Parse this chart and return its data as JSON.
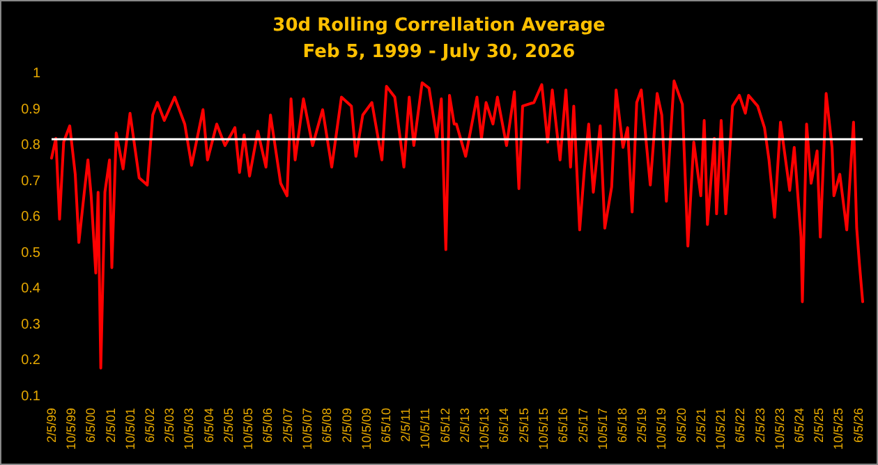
{
  "chart_data": {
    "type": "line",
    "title": "30d Rolling Correllation Average",
    "subtitle": "Feb 5, 1999 - July 30, 2026",
    "x": [
      "1999-02-05",
      "1999-03-30",
      "1999-05-15",
      "1999-07-05",
      "1999-09-18",
      "1999-11-25",
      "2000-01-09",
      "2000-03-16",
      "2000-04-30",
      "2000-06-09",
      "2000-08-05",
      "2000-09-03",
      "2000-10-06",
      "2000-11-26",
      "2001-01-22",
      "2001-02-20",
      "2001-04-15",
      "2001-07-09",
      "2001-10-03",
      "2002-01-24",
      "2002-05-04",
      "2002-07-11",
      "2002-09-07",
      "2002-12-01",
      "2003-04-08",
      "2003-08-11",
      "2003-11-04",
      "2004-03-24",
      "2004-05-19",
      "2004-09-10",
      "2004-12-21",
      "2005-04-23",
      "2005-06-19",
      "2005-08-15",
      "2005-10-21",
      "2006-01-31",
      "2006-05-12",
      "2006-07-07",
      "2006-11-10",
      "2007-01-28",
      "2007-03-18",
      "2007-05-08",
      "2007-08-19",
      "2007-12-10",
      "2008-04-12",
      "2008-08-03",
      "2008-12-01",
      "2009-04-03",
      "2009-05-29",
      "2009-08-22",
      "2009-12-13",
      "2010-04-16",
      "2010-06-11",
      "2010-09-22",
      "2011-01-13",
      "2011-03-20",
      "2011-05-16",
      "2011-08-26",
      "2011-11-20",
      "2012-02-24",
      "2012-04-20",
      "2012-06-15",
      "2012-07-30",
      "2012-09-26",
      "2012-10-24",
      "2013-02-15",
      "2013-07-05",
      "2013-08-30",
      "2013-10-26",
      "2014-01-19",
      "2014-03-15",
      "2014-07-06",
      "2014-10-11",
      "2014-12-06",
      "2015-01-21",
      "2015-06-10",
      "2015-09-15",
      "2015-11-27",
      "2016-01-23",
      "2016-04-28",
      "2016-07-10",
      "2016-09-05",
      "2016-10-15",
      "2016-12-27",
      "2017-02-22",
      "2017-04-18",
      "2017-06-14",
      "2017-09-07",
      "2017-11-03",
      "2018-01-27",
      "2018-03-23",
      "2018-06-16",
      "2018-08-12",
      "2018-10-07",
      "2018-12-03",
      "2019-01-28",
      "2019-05-20",
      "2019-08-13",
      "2019-10-09",
      "2019-12-05",
      "2020-03-09",
      "2020-06-20",
      "2020-08-27",
      "2020-11-08",
      "2021-02-03",
      "2021-03-17",
      "2021-04-26",
      "2021-07-20",
      "2021-08-17",
      "2021-10-13",
      "2021-12-09",
      "2022-03-03",
      "2022-05-26",
      "2022-08-08",
      "2022-09-17",
      "2023-01-08",
      "2023-04-02",
      "2023-05-28",
      "2023-08-05",
      "2023-10-17",
      "2024-02-08",
      "2024-04-04",
      "2024-06-27",
      "2024-07-14",
      "2024-09-04",
      "2024-10-30",
      "2025-01-12",
      "2025-02-21",
      "2025-05-04",
      "2025-07-16",
      "2025-08-08",
      "2025-10-20",
      "2026-01-14",
      "2026-04-08",
      "2026-05-17",
      "2026-06-20",
      "2026-07-30"
    ],
    "series": [
      {
        "color": "#ff0000",
        "values": [
          0.765,
          0.82,
          0.595,
          0.81,
          0.855,
          0.72,
          0.53,
          0.67,
          0.76,
          0.66,
          0.445,
          0.67,
          0.18,
          0.67,
          0.76,
          0.46,
          0.835,
          0.735,
          0.89,
          0.71,
          0.69,
          0.885,
          0.92,
          0.87,
          0.935,
          0.86,
          0.745,
          0.9,
          0.76,
          0.86,
          0.8,
          0.85,
          0.725,
          0.83,
          0.715,
          0.84,
          0.74,
          0.885,
          0.695,
          0.66,
          0.93,
          0.76,
          0.93,
          0.8,
          0.9,
          0.74,
          0.935,
          0.91,
          0.77,
          0.885,
          0.92,
          0.76,
          0.965,
          0.935,
          0.74,
          0.935,
          0.8,
          0.975,
          0.96,
          0.82,
          0.93,
          0.51,
          0.94,
          0.86,
          0.86,
          0.77,
          0.935,
          0.82,
          0.92,
          0.86,
          0.935,
          0.8,
          0.95,
          0.68,
          0.91,
          0.92,
          0.97,
          0.81,
          0.955,
          0.76,
          0.955,
          0.74,
          0.91,
          0.565,
          0.73,
          0.86,
          0.67,
          0.855,
          0.57,
          0.685,
          0.955,
          0.795,
          0.85,
          0.615,
          0.92,
          0.955,
          0.69,
          0.945,
          0.885,
          0.645,
          0.98,
          0.915,
          0.52,
          0.81,
          0.66,
          0.87,
          0.58,
          0.82,
          0.61,
          0.87,
          0.61,
          0.91,
          0.94,
          0.89,
          0.94,
          0.91,
          0.85,
          0.76,
          0.6,
          0.865,
          0.675,
          0.795,
          0.545,
          0.365,
          0.86,
          0.695,
          0.785,
          0.545,
          0.945,
          0.795,
          0.66,
          0.72,
          0.565,
          0.865,
          0.57,
          0.47,
          0.365
        ]
      }
    ],
    "xlim": [
      "1999-02-05",
      "2026-07-30"
    ],
    "xticks": [
      {
        "value": "1999-02-05",
        "label": "2/5/99"
      },
      {
        "value": "1999-10-05",
        "label": "10/5/99"
      },
      {
        "value": "2000-06-05",
        "label": "6/5/00"
      },
      {
        "value": "2001-02-05",
        "label": "2/5/01"
      },
      {
        "value": "2001-10-05",
        "label": "10/5/01"
      },
      {
        "value": "2002-06-05",
        "label": "6/5/02"
      },
      {
        "value": "2003-02-05",
        "label": "2/5/03"
      },
      {
        "value": "2003-10-05",
        "label": "10/5/03"
      },
      {
        "value": "2004-06-05",
        "label": "6/5/04"
      },
      {
        "value": "2005-02-05",
        "label": "2/5/05"
      },
      {
        "value": "2005-10-05",
        "label": "10/5/05"
      },
      {
        "value": "2006-06-05",
        "label": "6/5/06"
      },
      {
        "value": "2007-02-05",
        "label": "2/5/07"
      },
      {
        "value": "2007-10-05",
        "label": "10/5/07"
      },
      {
        "value": "2008-06-05",
        "label": "6/5/08"
      },
      {
        "value": "2009-02-05",
        "label": "2/5/09"
      },
      {
        "value": "2009-10-05",
        "label": "10/5/09"
      },
      {
        "value": "2010-06-05",
        "label": "6/5/10"
      },
      {
        "value": "2011-02-05",
        "label": "2/5/11"
      },
      {
        "value": "2011-10-05",
        "label": "10/5/11"
      },
      {
        "value": "2012-06-05",
        "label": "6/5/12"
      },
      {
        "value": "2013-02-05",
        "label": "2/5/13"
      },
      {
        "value": "2013-10-05",
        "label": "10/5/13"
      },
      {
        "value": "2014-06-05",
        "label": "6/5/14"
      },
      {
        "value": "2015-02-05",
        "label": "2/5/15"
      },
      {
        "value": "2015-10-05",
        "label": "10/5/15"
      },
      {
        "value": "2016-06-05",
        "label": "6/5/16"
      },
      {
        "value": "2017-02-05",
        "label": "2/5/17"
      },
      {
        "value": "2017-10-05",
        "label": "10/5/17"
      },
      {
        "value": "2018-06-05",
        "label": "6/5/18"
      },
      {
        "value": "2019-02-05",
        "label": "2/5/19"
      },
      {
        "value": "2019-10-05",
        "label": "10/5/19"
      },
      {
        "value": "2020-06-05",
        "label": "6/5/20"
      },
      {
        "value": "2021-02-05",
        "label": "2/5/21"
      },
      {
        "value": "2021-10-05",
        "label": "10/5/21"
      },
      {
        "value": "2022-06-05",
        "label": "6/5/22"
      },
      {
        "value": "2023-02-05",
        "label": "2/5/23"
      },
      {
        "value": "2023-10-05",
        "label": "10/5/23"
      },
      {
        "value": "2024-06-05",
        "label": "6/5/24"
      },
      {
        "value": "2025-02-05",
        "label": "2/5/25"
      },
      {
        "value": "2025-10-05",
        "label": "10/5/25"
      },
      {
        "value": "2026-06-05",
        "label": "6/5/26"
      }
    ],
    "ylim": [
      0.1,
      1
    ],
    "yticks": [
      0.1,
      0.2,
      0.3,
      0.4,
      0.5,
      0.6,
      0.7,
      0.8,
      0.9,
      1
    ],
    "ref_lines": [
      {
        "axis": "y",
        "value": 0.82,
        "color": "#ffffff"
      }
    ],
    "grid": false,
    "marker": "none",
    "line_style": "solid"
  }
}
